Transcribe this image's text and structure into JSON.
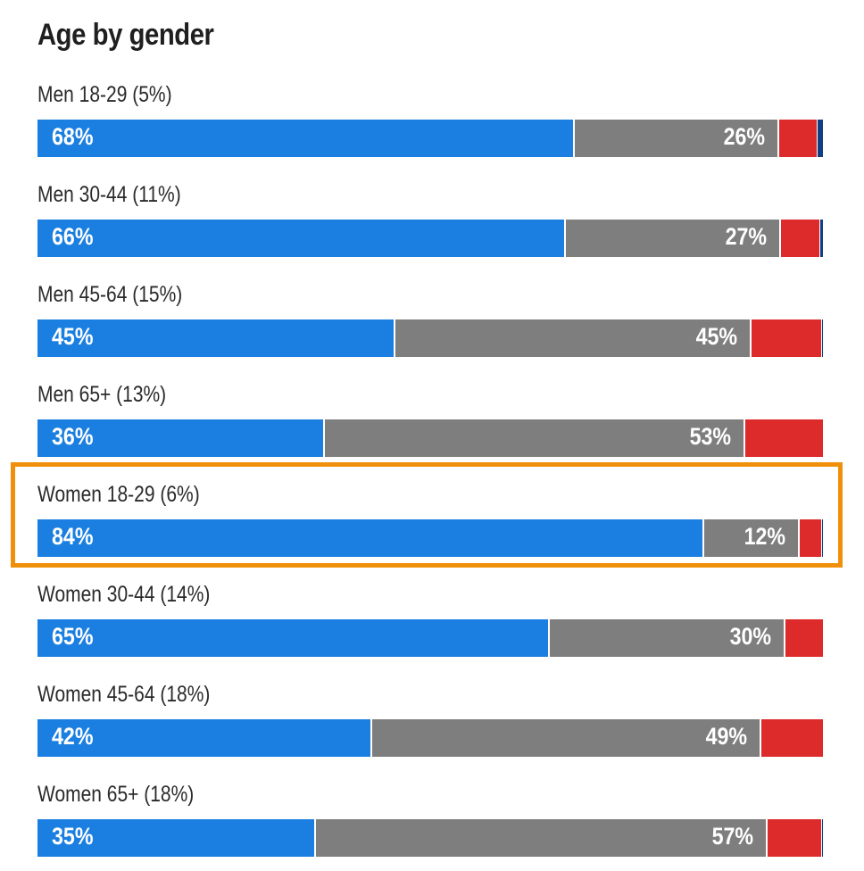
{
  "colors": {
    "democrat": "#1a7fe0",
    "other": "#7e7e7e",
    "republican": "#dd2a2a",
    "small_segment": "#0f3f85",
    "highlight": "#f0900a"
  },
  "chart_data": {
    "type": "bar",
    "orientation": "horizontal-stacked",
    "title": "Age by gender",
    "categories": [
      "Men 18-29 (5%)",
      "Men 30-44 (11%)",
      "Men 45-64 (15%)",
      "Men 65+ (13%)",
      "Women 18-29 (6%)",
      "Women 30-44 (14%)",
      "Women 45-64 (18%)",
      "Women 65+ (18%)"
    ],
    "series": [
      {
        "values": [
          68,
          66,
          45,
          36,
          84,
          65,
          42,
          35
        ],
        "color": "#1a7fe0",
        "labels": [
          "68%",
          "66%",
          "45%",
          "36%",
          "84%",
          "65%",
          "42%",
          "35%"
        ]
      },
      {
        "values": [
          26,
          27,
          45,
          53,
          12,
          30,
          49,
          57
        ],
        "color": "#7e7e7e",
        "labels": [
          "26%",
          "27%",
          "45%",
          "53%",
          "12%",
          "30%",
          "49%",
          "57%"
        ]
      },
      {
        "values": [
          5,
          5,
          9,
          10,
          3,
          5,
          8,
          7
        ],
        "color": "#dd2a2a"
      },
      {
        "values": [
          0.8,
          0.5,
          0.2,
          0,
          0.2,
          0,
          0,
          0.2
        ],
        "color": "#0f3f85"
      }
    ],
    "xlim": [
      0,
      100
    ],
    "highlighted_category": "Women 18-29 (6%)"
  }
}
